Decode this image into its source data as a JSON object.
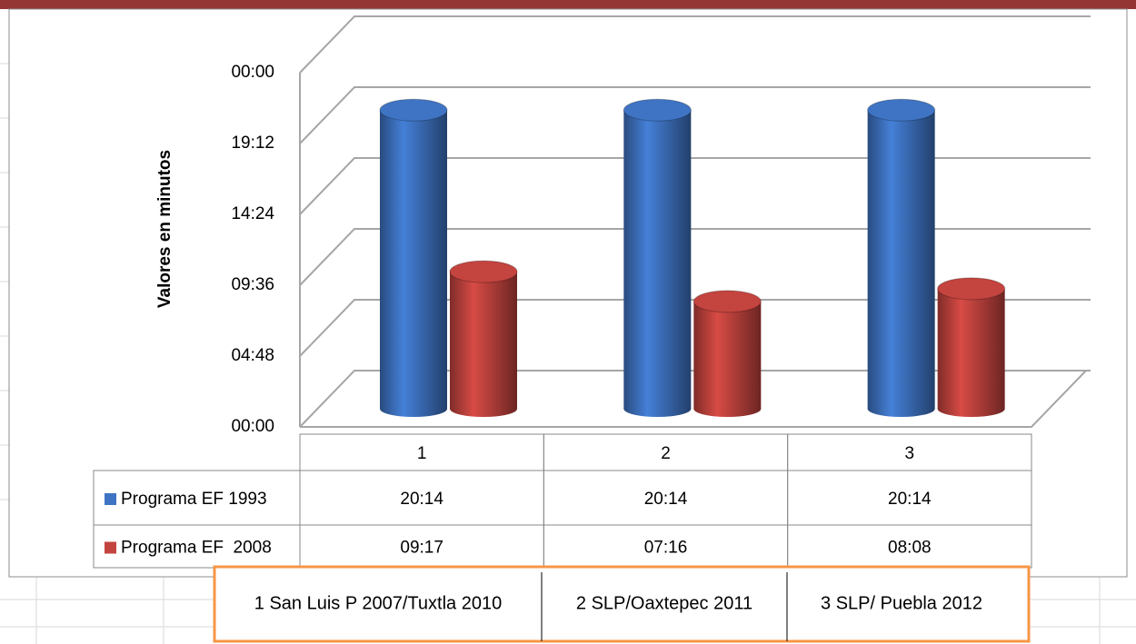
{
  "chart_data": {
    "type": "bar",
    "y_label": "Valores en minutos",
    "categories": [
      "1",
      "2",
      "3"
    ],
    "series": [
      {
        "name": "Programa EF 1993",
        "color": "#3f74c4",
        "values": [
          1214,
          1214,
          1214
        ],
        "value_labels": [
          "20:14",
          "20:14",
          "20:14"
        ]
      },
      {
        "name": "Programa EF  2008",
        "color": "#c4443f",
        "values": [
          557,
          436,
          488
        ],
        "value_labels": [
          "09:17",
          "07:16",
          "08:08"
        ]
      }
    ],
    "ylim": [
      0,
      1440
    ],
    "yticks": [
      {
        "value": 0,
        "label": "00:00"
      },
      {
        "value": 288,
        "label": "04:48"
      },
      {
        "value": 576,
        "label": "09:36"
      },
      {
        "value": 864,
        "label": "14:24"
      },
      {
        "value": 1152,
        "label": "19:12"
      },
      {
        "value": 1440,
        "label": "00:00"
      }
    ],
    "grid": true,
    "annotations": [
      "1 San Luis P 2007/Tuxtla 2010",
      "2 SLP/Oaxtepec 2011",
      "3 SLP/ Puebla 2012"
    ]
  }
}
